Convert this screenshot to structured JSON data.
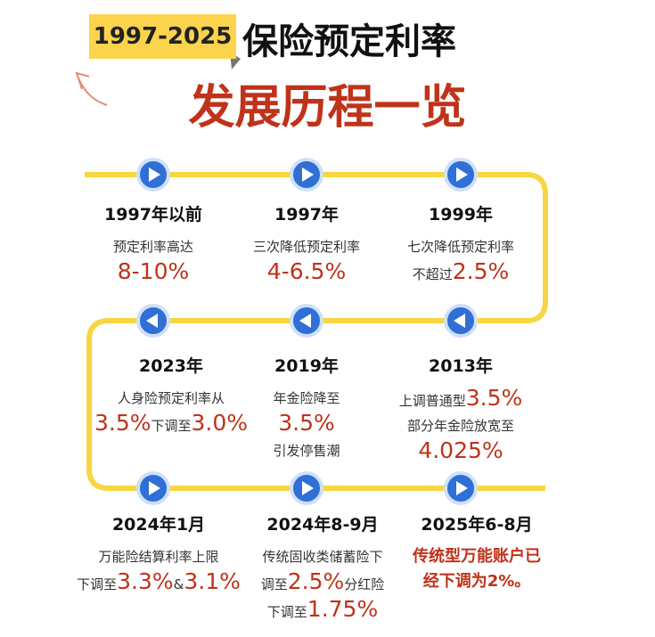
{
  "header": {
    "badge": "1997-2025",
    "title": "保险预定利率",
    "subtitle": "发展历程一览"
  },
  "entries": [
    {
      "year": "1997年以前",
      "lines": [
        [
          {
            "text": "预定利率高达"
          }
        ],
        [
          {
            "text": "8-10%",
            "em": true
          }
        ]
      ]
    },
    {
      "year": "1997年",
      "lines": [
        [
          {
            "text": "三次降低预定利率"
          }
        ],
        [
          {
            "text": "4-6.5%",
            "em": true
          }
        ]
      ]
    },
    {
      "year": "1999年",
      "lines": [
        [
          {
            "text": "七次降低预定利率"
          }
        ],
        [
          {
            "text": "不超过"
          },
          {
            "text": "2.5%",
            "em": true
          }
        ]
      ]
    },
    {
      "year": "2023年",
      "lines": [
        [
          {
            "text": "人身险预定利率从"
          }
        ],
        [
          {
            "text": "3.5%",
            "em": true
          },
          {
            "text": "下调至"
          },
          {
            "text": "3.0%",
            "em": true
          }
        ]
      ]
    },
    {
      "year": "2019年",
      "lines": [
        [
          {
            "text": "年金险降至"
          }
        ],
        [
          {
            "text": "3.5%",
            "em": true
          }
        ],
        [
          {
            "text": "引发停售潮"
          }
        ]
      ]
    },
    {
      "year": "2013年",
      "lines": [
        [
          {
            "text": "上调普通型"
          },
          {
            "text": "3.5%",
            "em": true
          }
        ],
        [
          {
            "text": "部分年金险放宽至"
          }
        ],
        [
          {
            "text": "4.025%",
            "em": true
          }
        ]
      ]
    },
    {
      "year": "2024年1月",
      "lines": [
        [
          {
            "text": "万能险结算利率上限"
          }
        ],
        [
          {
            "text": "下调至"
          },
          {
            "text": "3.3%",
            "em": true
          },
          {
            "text": "&"
          },
          {
            "text": "3.1%",
            "em": true
          }
        ]
      ]
    },
    {
      "year": "2024年8-9月",
      "lines": [
        [
          {
            "text": "传统固收类储蓄险下"
          }
        ],
        [
          {
            "text": "调至"
          },
          {
            "text": "2.5%",
            "em": true
          },
          {
            "text": "分红险"
          }
        ],
        [
          {
            "text": "下调至"
          },
          {
            "text": "1.75%",
            "em": true
          }
        ]
      ]
    },
    {
      "year": "2025年6-8月",
      "lines": [
        [
          {
            "text": "传统型万能账户已",
            "red": true
          }
        ],
        [
          {
            "text": "经下调为2%。",
            "red": true
          }
        ]
      ]
    }
  ]
}
